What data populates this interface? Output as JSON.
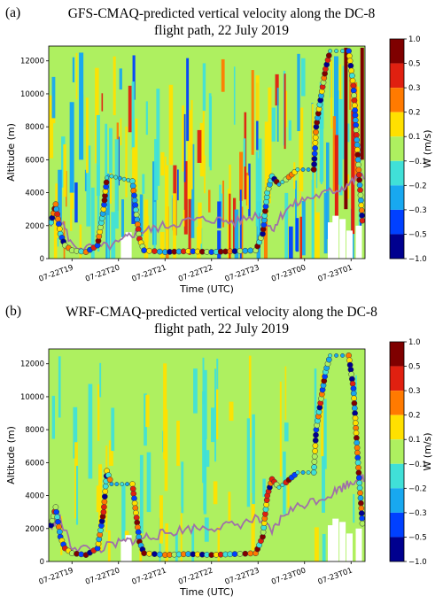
{
  "chart_data": [
    {
      "type": "heatmap",
      "panel": "(a)",
      "title_line1": "GFS-CMAQ-predicted vertical velocity along the DC-8",
      "title_line2": "flight path, 22 July 2019",
      "xlabel": "Time (UTC)",
      "ylabel": "Altitude (m)",
      "colorbar_label": "W (m/s)",
      "x_ticks": [
        "07-22T19",
        "07-22T20",
        "07-22T21",
        "07-22T22",
        "07-22T23",
        "07-23T00",
        "07-23T01"
      ],
      "x_range_hours": [
        18.5,
        25.3
      ],
      "y_ticks": [
        0,
        2000,
        4000,
        6000,
        8000,
        10000,
        12000
      ],
      "ylim": [
        0,
        12900
      ],
      "colorbar_ticks": [
        "1.0",
        "0.5",
        "0.3",
        "0.2",
        "0.1",
        "−0.1",
        "−0.2",
        "−0.3",
        "−0.5",
        "−1.0"
      ],
      "colorbar_colors": [
        "#7f0000",
        "#e02010",
        "#ff7a00",
        "#ffe000",
        "#aef060",
        "#40e0d8",
        "#18a8f0",
        "#0040ff",
        "#00008f"
      ],
      "flight_altitude_samples": [
        {
          "hour": 18.55,
          "alt": 2200
        },
        {
          "hour": 18.65,
          "alt": 3300
        },
        {
          "hour": 18.75,
          "alt": 1500
        },
        {
          "hour": 18.85,
          "alt": 800
        },
        {
          "hour": 19.0,
          "alt": 500
        },
        {
          "hour": 19.3,
          "alt": 400
        },
        {
          "hour": 19.55,
          "alt": 800
        },
        {
          "hour": 19.68,
          "alt": 3000
        },
        {
          "hour": 19.75,
          "alt": 4900
        },
        {
          "hour": 19.85,
          "alt": 5000
        },
        {
          "hour": 20.3,
          "alt": 4700
        },
        {
          "hour": 20.45,
          "alt": 1200
        },
        {
          "hour": 20.55,
          "alt": 500
        },
        {
          "hour": 21.0,
          "alt": 400
        },
        {
          "hour": 21.5,
          "alt": 450
        },
        {
          "hour": 22.0,
          "alt": 400
        },
        {
          "hour": 22.5,
          "alt": 450
        },
        {
          "hour": 22.95,
          "alt": 500
        },
        {
          "hour": 23.1,
          "alt": 1500
        },
        {
          "hour": 23.2,
          "alt": 4000
        },
        {
          "hour": 23.3,
          "alt": 5000
        },
        {
          "hour": 23.45,
          "alt": 4500
        },
        {
          "hour": 23.6,
          "alt": 4800
        },
        {
          "hour": 23.85,
          "alt": 5400
        },
        {
          "hour": 24.2,
          "alt": 5400
        },
        {
          "hour": 24.25,
          "alt": 8000
        },
        {
          "hour": 24.45,
          "alt": 11500
        },
        {
          "hour": 24.55,
          "alt": 12600
        },
        {
          "hour": 24.95,
          "alt": 12600
        },
        {
          "hour": 25.05,
          "alt": 10500
        },
        {
          "hour": 25.15,
          "alt": 6000
        },
        {
          "hour": 25.25,
          "alt": 2000
        }
      ],
      "pbl_height_samples": [
        {
          "hour": 18.55,
          "alt": 2000
        },
        {
          "hour": 18.7,
          "alt": 2800
        },
        {
          "hour": 19.0,
          "alt": 800
        },
        {
          "hour": 19.5,
          "alt": 600
        },
        {
          "hour": 20.0,
          "alt": 900
        },
        {
          "hour": 20.3,
          "alt": 1500
        },
        {
          "hour": 20.6,
          "alt": 1700
        },
        {
          "hour": 21.0,
          "alt": 2000
        },
        {
          "hour": 21.5,
          "alt": 2300
        },
        {
          "hour": 22.0,
          "alt": 2400
        },
        {
          "hour": 22.5,
          "alt": 2200
        },
        {
          "hour": 23.0,
          "alt": 2700
        },
        {
          "hour": 23.3,
          "alt": 1800
        },
        {
          "hour": 23.6,
          "alt": 3000
        },
        {
          "hour": 24.0,
          "alt": 3600
        },
        {
          "hour": 24.5,
          "alt": 4000
        },
        {
          "hour": 24.8,
          "alt": 4300
        },
        {
          "hour": 25.1,
          "alt": 4800
        },
        {
          "hour": 25.3,
          "alt": 5000
        }
      ]
    },
    {
      "type": "heatmap",
      "panel": "(b)",
      "title_line1": "WRF-CMAQ-predicted vertical velocity along the DC-8",
      "title_line2": "flight path, 22 July 2019",
      "xlabel": "Time (UTC)",
      "ylabel": "Altitude (m)",
      "colorbar_label": "W (m/s)",
      "x_ticks": [
        "07-22T19",
        "07-22T20",
        "07-22T21",
        "07-22T22",
        "07-22T23",
        "07-23T00",
        "07-23T01"
      ],
      "x_range_hours": [
        18.5,
        25.3
      ],
      "y_ticks": [
        0,
        2000,
        4000,
        6000,
        8000,
        10000,
        12000
      ],
      "ylim": [
        0,
        12900
      ],
      "colorbar_ticks": [
        "1.0",
        "0.5",
        "0.3",
        "0.2",
        "0.1",
        "−0.1",
        "−0.2",
        "−0.3",
        "−0.5",
        "−1.0"
      ],
      "colorbar_colors": [
        "#7f0000",
        "#e02010",
        "#ff7a00",
        "#ffe000",
        "#aef060",
        "#40e0d8",
        "#18a8f0",
        "#0040ff",
        "#00008f"
      ],
      "flight_altitude_samples": [
        {
          "hour": 18.55,
          "alt": 2200
        },
        {
          "hour": 18.65,
          "alt": 3300
        },
        {
          "hour": 18.75,
          "alt": 1500
        },
        {
          "hour": 18.85,
          "alt": 800
        },
        {
          "hour": 19.0,
          "alt": 500
        },
        {
          "hour": 19.3,
          "alt": 400
        },
        {
          "hour": 19.55,
          "alt": 800
        },
        {
          "hour": 19.68,
          "alt": 3000
        },
        {
          "hour": 19.75,
          "alt": 5500
        },
        {
          "hour": 19.85,
          "alt": 4700
        },
        {
          "hour": 20.3,
          "alt": 4700
        },
        {
          "hour": 20.45,
          "alt": 1200
        },
        {
          "hour": 20.55,
          "alt": 500
        },
        {
          "hour": 21.0,
          "alt": 400
        },
        {
          "hour": 21.5,
          "alt": 450
        },
        {
          "hour": 22.0,
          "alt": 400
        },
        {
          "hour": 22.5,
          "alt": 450
        },
        {
          "hour": 22.95,
          "alt": 500
        },
        {
          "hour": 23.1,
          "alt": 1500
        },
        {
          "hour": 23.2,
          "alt": 4000
        },
        {
          "hour": 23.3,
          "alt": 5000
        },
        {
          "hour": 23.45,
          "alt": 4500
        },
        {
          "hour": 23.6,
          "alt": 4800
        },
        {
          "hour": 23.85,
          "alt": 5400
        },
        {
          "hour": 24.2,
          "alt": 5400
        },
        {
          "hour": 24.25,
          "alt": 8000
        },
        {
          "hour": 24.45,
          "alt": 11500
        },
        {
          "hour": 24.55,
          "alt": 12500
        },
        {
          "hour": 24.95,
          "alt": 12500
        },
        {
          "hour": 25.05,
          "alt": 10500
        },
        {
          "hour": 25.15,
          "alt": 6000
        },
        {
          "hour": 25.25,
          "alt": 2000
        }
      ],
      "pbl_height_samples": [
        {
          "hour": 18.55,
          "alt": 2000
        },
        {
          "hour": 18.7,
          "alt": 2800
        },
        {
          "hour": 19.0,
          "alt": 900
        },
        {
          "hour": 19.5,
          "alt": 700
        },
        {
          "hour": 20.0,
          "alt": 1100
        },
        {
          "hour": 20.3,
          "alt": 1300
        },
        {
          "hour": 20.6,
          "alt": 1500
        },
        {
          "hour": 21.0,
          "alt": 1700
        },
        {
          "hour": 21.5,
          "alt": 2000
        },
        {
          "hour": 22.0,
          "alt": 2100
        },
        {
          "hour": 22.5,
          "alt": 2200
        },
        {
          "hour": 23.0,
          "alt": 2600
        },
        {
          "hour": 23.3,
          "alt": 1800
        },
        {
          "hour": 23.6,
          "alt": 3000
        },
        {
          "hour": 24.0,
          "alt": 3500
        },
        {
          "hour": 24.5,
          "alt": 4000
        },
        {
          "hour": 24.8,
          "alt": 4500
        },
        {
          "hour": 25.1,
          "alt": 5000
        },
        {
          "hour": 25.3,
          "alt": 5100
        }
      ]
    }
  ]
}
